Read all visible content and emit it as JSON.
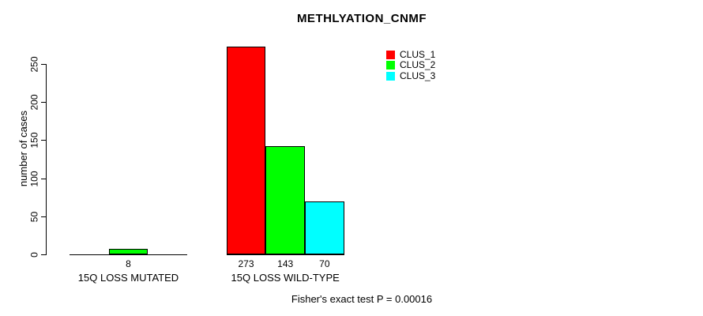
{
  "chart_data": {
    "type": "bar",
    "title": "METHLYATION_CNMF",
    "ylabel": "number of cases",
    "annotation": "Fisher's exact test P = 0.00016",
    "categories": [
      "15Q LOSS MUTATED",
      "15Q LOSS WILD-TYPE"
    ],
    "series": [
      {
        "name": "CLUS_1",
        "color": "#ff0000",
        "values": [
          0,
          273
        ]
      },
      {
        "name": "CLUS_2",
        "color": "#00ff00",
        "values": [
          8,
          143
        ]
      },
      {
        "name": "CLUS_3",
        "color": "#00ffff",
        "values": [
          0,
          70
        ]
      }
    ],
    "bar_value_labels": [
      [
        "",
        "8",
        ""
      ],
      [
        "273",
        "143",
        "70"
      ]
    ],
    "yticks": [
      0,
      50,
      100,
      150,
      200,
      250
    ],
    "ylim": [
      0,
      250
    ],
    "grid": false,
    "legend_position": "top-right-inside",
    "axis_color": "#000000",
    "background_color": "#ffffff"
  }
}
